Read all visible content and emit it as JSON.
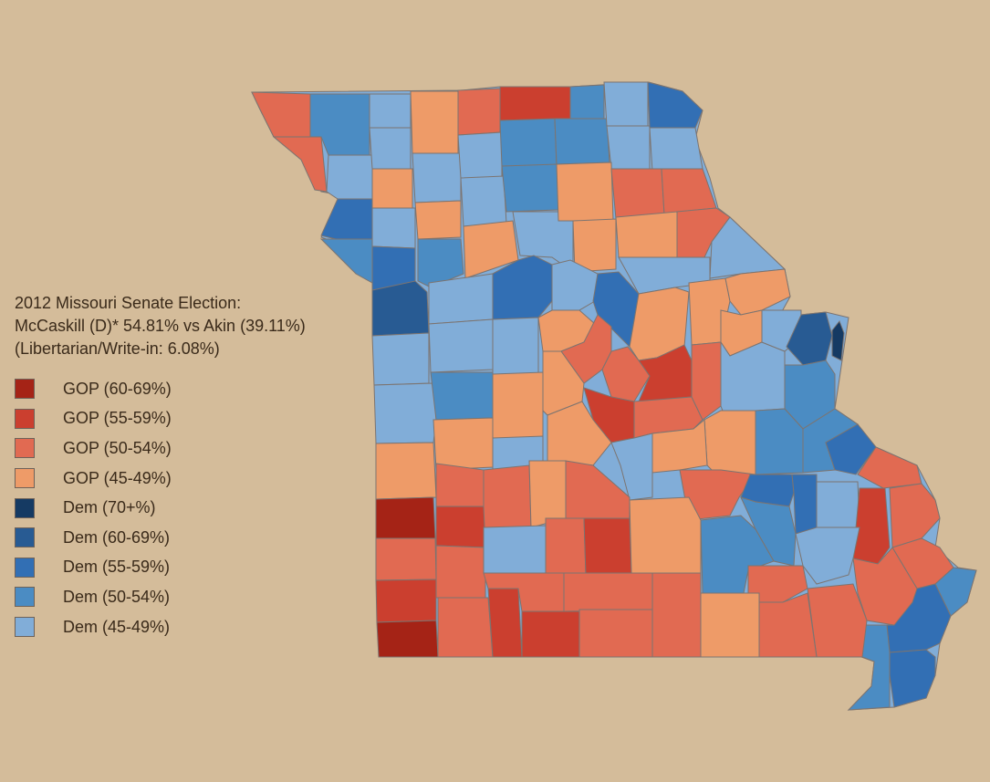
{
  "title": {
    "line1": "2012 Missouri Senate Election:",
    "line2": "McCaskill (D)* 54.81% vs Akin (39.11%)",
    "line3": "(Libertarian/Write-in: 6.08%)"
  },
  "legend": [
    {
      "label": "GOP (60-69%)",
      "color": "#a52316"
    },
    {
      "label": "GOP (55-59%)",
      "color": "#cb3f2f"
    },
    {
      "label": "GOP (50-54%)",
      "color": "#e16a52"
    },
    {
      "label": "GOP (45-49%)",
      "color": "#ee9b68"
    },
    {
      "label": "Dem (70+%)",
      "color": "#153a63"
    },
    {
      "label": "Dem (60-69%)",
      "color": "#285b93"
    },
    {
      "label": "Dem (55-59%)",
      "color": "#326fb4"
    },
    {
      "label": "Dem (50-54%)",
      "color": "#4b8cc3"
    },
    {
      "label": "Dem (45-49%)",
      "color": "#81add8"
    }
  ]
}
